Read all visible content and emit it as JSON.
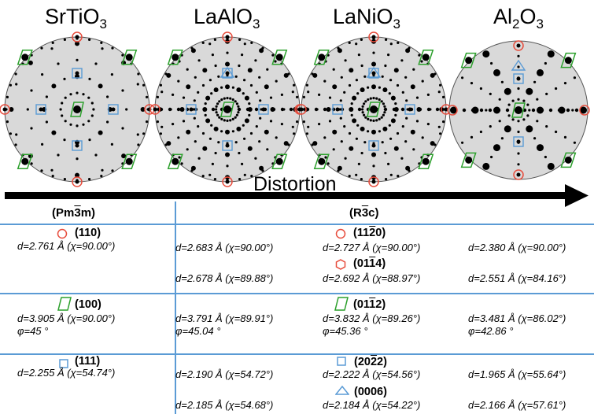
{
  "materials": [
    {
      "name": "SrTiO",
      "sub": "3"
    },
    {
      "name": "LaAlO",
      "sub": "3"
    },
    {
      "name": "LaNiO",
      "sub": "3"
    },
    {
      "name": "Al",
      "sub": "2",
      "name2": "O",
      "sub2": "3"
    }
  ],
  "arrow": {
    "label": "Distortion"
  },
  "table": {
    "group_cubic": {
      "pre": "(Pm",
      "bar": "3",
      "post": "m)"
    },
    "group_rhombo": {
      "pre": "(R",
      "bar": "3",
      "post": "c)"
    },
    "sections": [
      {
        "left_label": "(110)",
        "left_d": "d=2.761 Å (χ=90.00°)",
        "mid_label": {
          "pre": "(11",
          "bar": "2",
          "post": "0)"
        },
        "row1": [
          "d=2.683 Å (χ=90.00°)",
          "d=2.727 Å (χ=90.00°)",
          "d=2.380 Å (χ=90.00°)"
        ],
        "mid_label2": {
          "pre": "(01",
          "bar": "1",
          "post": "4)"
        },
        "row2": [
          "d=2.678 Å (χ=89.88°)",
          "d=2.692 Å (χ=88.97°)",
          "d=2.551 Å (χ=84.16°)"
        ]
      },
      {
        "left_label": "(100)",
        "left_d": "d=3.905 Å (χ=90.00°)",
        "left_phi": "φ=45 °",
        "mid_label": {
          "pre": "(01",
          "bar": "1",
          "post": "2)"
        },
        "row1": [
          "d=3.791 Å (χ=89.91°)",
          "d=3.832 Å (χ=89.26°)",
          "d=3.481 Å (χ=86.02°)"
        ],
        "phi": [
          "φ=45.04 °",
          "φ=45.36 °",
          "φ=42.86 °"
        ]
      },
      {
        "left_label": "(111)",
        "left_d": "d=2.255 Å (χ=54.74°)",
        "mid_label": {
          "pre": "(20",
          "bar": "2",
          "post": "2)"
        },
        "row1": [
          "d=2.190 Å (χ=54.72°)",
          "d=2.222 Å (χ=54.56°)",
          "d=1.965 Å (χ=55.64°)"
        ],
        "mid_label2": {
          "pre": "(0006)",
          "bar": "",
          "post": ""
        },
        "row2": [
          "d=2.185 Å (χ=54.68°)",
          "d=2.184 Å (χ=54.22°)",
          "d=2.166 Å (χ=57.61°)"
        ]
      }
    ]
  },
  "colors": {
    "circle_marker": "#e74c3c",
    "hex_marker": "#e74c3c",
    "rect_marker": "#2ca02c",
    "square_marker": "#5b9bd5",
    "triangle_marker": "#5b9bd5",
    "divider": "#5b9bd5",
    "disc": "#d9d9d9"
  },
  "icons": [
    "red-circle-icon",
    "red-hexagon-icon",
    "green-parallelogram-icon",
    "blue-square-icon",
    "blue-triangle-icon"
  ]
}
